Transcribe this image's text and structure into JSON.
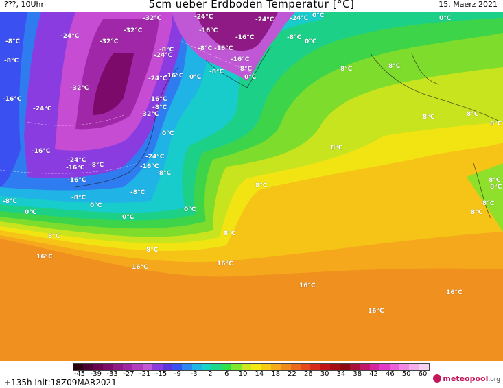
{
  "header": {
    "run_label": "???, 10Uhr",
    "title": "5cm ueber Erdboden Temperatur [°C]",
    "date": "15. Maerz 2021"
  },
  "map": {
    "labels": [
      "-32°C",
      "-24°C",
      "-32°C",
      "-24°C",
      "-24°C",
      "-16°C",
      "-8°C",
      "-16°C",
      "-8°C",
      "-16°C",
      "-8°C",
      "-24°C",
      "-32°C",
      "-16°C",
      "-8°C",
      "-32°C",
      "-24°C",
      "-8°C",
      "-16°C",
      "-8°C",
      "-24°C",
      "-16°C",
      "-24°C",
      "-16°C",
      "-8°C",
      "-32°C",
      "-8°C",
      "-16°C",
      "-8°C",
      "-24°C",
      "-16°C",
      "-8°C",
      "-16°C",
      "-8°C",
      "-24°C",
      "-16°C",
      "-8°C",
      "-8°C",
      "0°C",
      "0°C",
      "0°C",
      "0°C",
      "0°C",
      "0°C",
      "0°C",
      "0°C",
      "0°C",
      "0°C",
      "8°C",
      "8°C",
      "8°C",
      "8°C",
      "8°C",
      "8°C",
      "8°C",
      "8°C",
      "8°C",
      "8°C",
      "8°C",
      "8°C",
      "8°C",
      "8°C",
      "16°C",
      "16°C",
      "16°C",
      "16°C",
      "16°C",
      "16°C"
    ]
  },
  "legend": {
    "ticks": [
      "-45",
      "-39",
      "-33",
      "-27",
      "-21",
      "-15",
      "-9",
      "-3",
      "2",
      "6",
      "10",
      "14",
      "18",
      "22",
      "26",
      "30",
      "34",
      "38",
      "42",
      "46",
      "50",
      "60"
    ],
    "colors": [
      "#2a0010",
      "#4a0032",
      "#6a0050",
      "#7c0a6a",
      "#8f1a86",
      "#a226a4",
      "#b43cbf",
      "#c258d6",
      "#8a3ce0",
      "#5c34e0",
      "#3a50f0",
      "#2f86f2",
      "#1fb6e8",
      "#18d4c8",
      "#1cd88a",
      "#30e04a",
      "#7ee82c",
      "#cde81e",
      "#f4ea10",
      "#f5cc12",
      "#f5ac18",
      "#f08c1c",
      "#ec6a1e",
      "#e64a1c",
      "#d62a1a",
      "#c01416",
      "#a60c14",
      "#8c0810",
      "#a8103a",
      "#c0186a",
      "#d424a0",
      "#e03ac6",
      "#ea60da",
      "#f088e4",
      "#f4aeec",
      "#f8d0f2"
    ],
    "run_info": "+135h  Init:18Z09MAR2021",
    "brand": "meteopool",
    "brand_suffix": ".org"
  }
}
